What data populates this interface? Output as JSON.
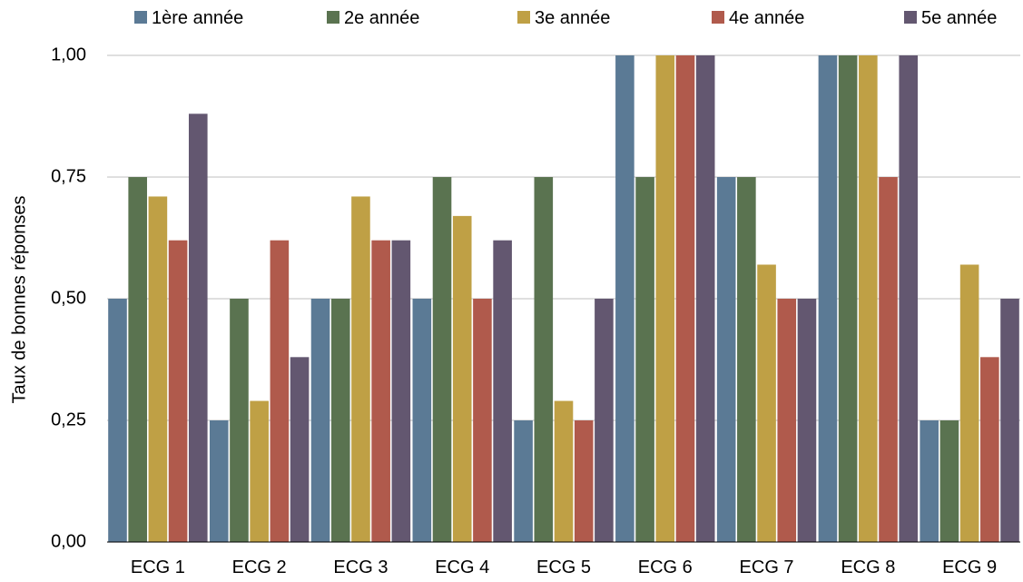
{
  "chart_data": {
    "type": "bar",
    "title": "",
    "xlabel": "",
    "ylabel": "Taux de bonnes réponses",
    "categories": [
      "ECG 1",
      "ECG 2",
      "ECG 3",
      "ECG 4",
      "ECG 5",
      "ECG 6",
      "ECG 7",
      "ECG 8",
      "ECG 9"
    ],
    "series": [
      {
        "name": "1ère année",
        "color": "#5B7A95",
        "values": [
          0.5,
          0.25,
          0.5,
          0.5,
          0.25,
          1.0,
          0.75,
          1.0,
          0.25
        ]
      },
      {
        "name": "2e année",
        "color": "#5A7350",
        "values": [
          0.75,
          0.5,
          0.5,
          0.75,
          0.75,
          0.75,
          0.75,
          1.0,
          0.25
        ]
      },
      {
        "name": "3e année",
        "color": "#BFA045",
        "values": [
          0.71,
          0.29,
          0.71,
          0.67,
          0.29,
          1.0,
          0.57,
          1.0,
          0.57
        ]
      },
      {
        "name": "4e année",
        "color": "#B05A4C",
        "values": [
          0.62,
          0.62,
          0.62,
          0.5,
          0.25,
          1.0,
          0.5,
          0.75,
          0.38
        ]
      },
      {
        "name": "5e année",
        "color": "#635770",
        "values": [
          0.88,
          0.38,
          0.62,
          0.62,
          0.5,
          1.0,
          0.5,
          1.0,
          0.5
        ]
      }
    ],
    "yticks": [
      "0,00",
      "0,25",
      "0,50",
      "0,75",
      "1,00"
    ],
    "ylim": [
      0,
      1
    ],
    "grid": true,
    "legend_position": "top"
  }
}
